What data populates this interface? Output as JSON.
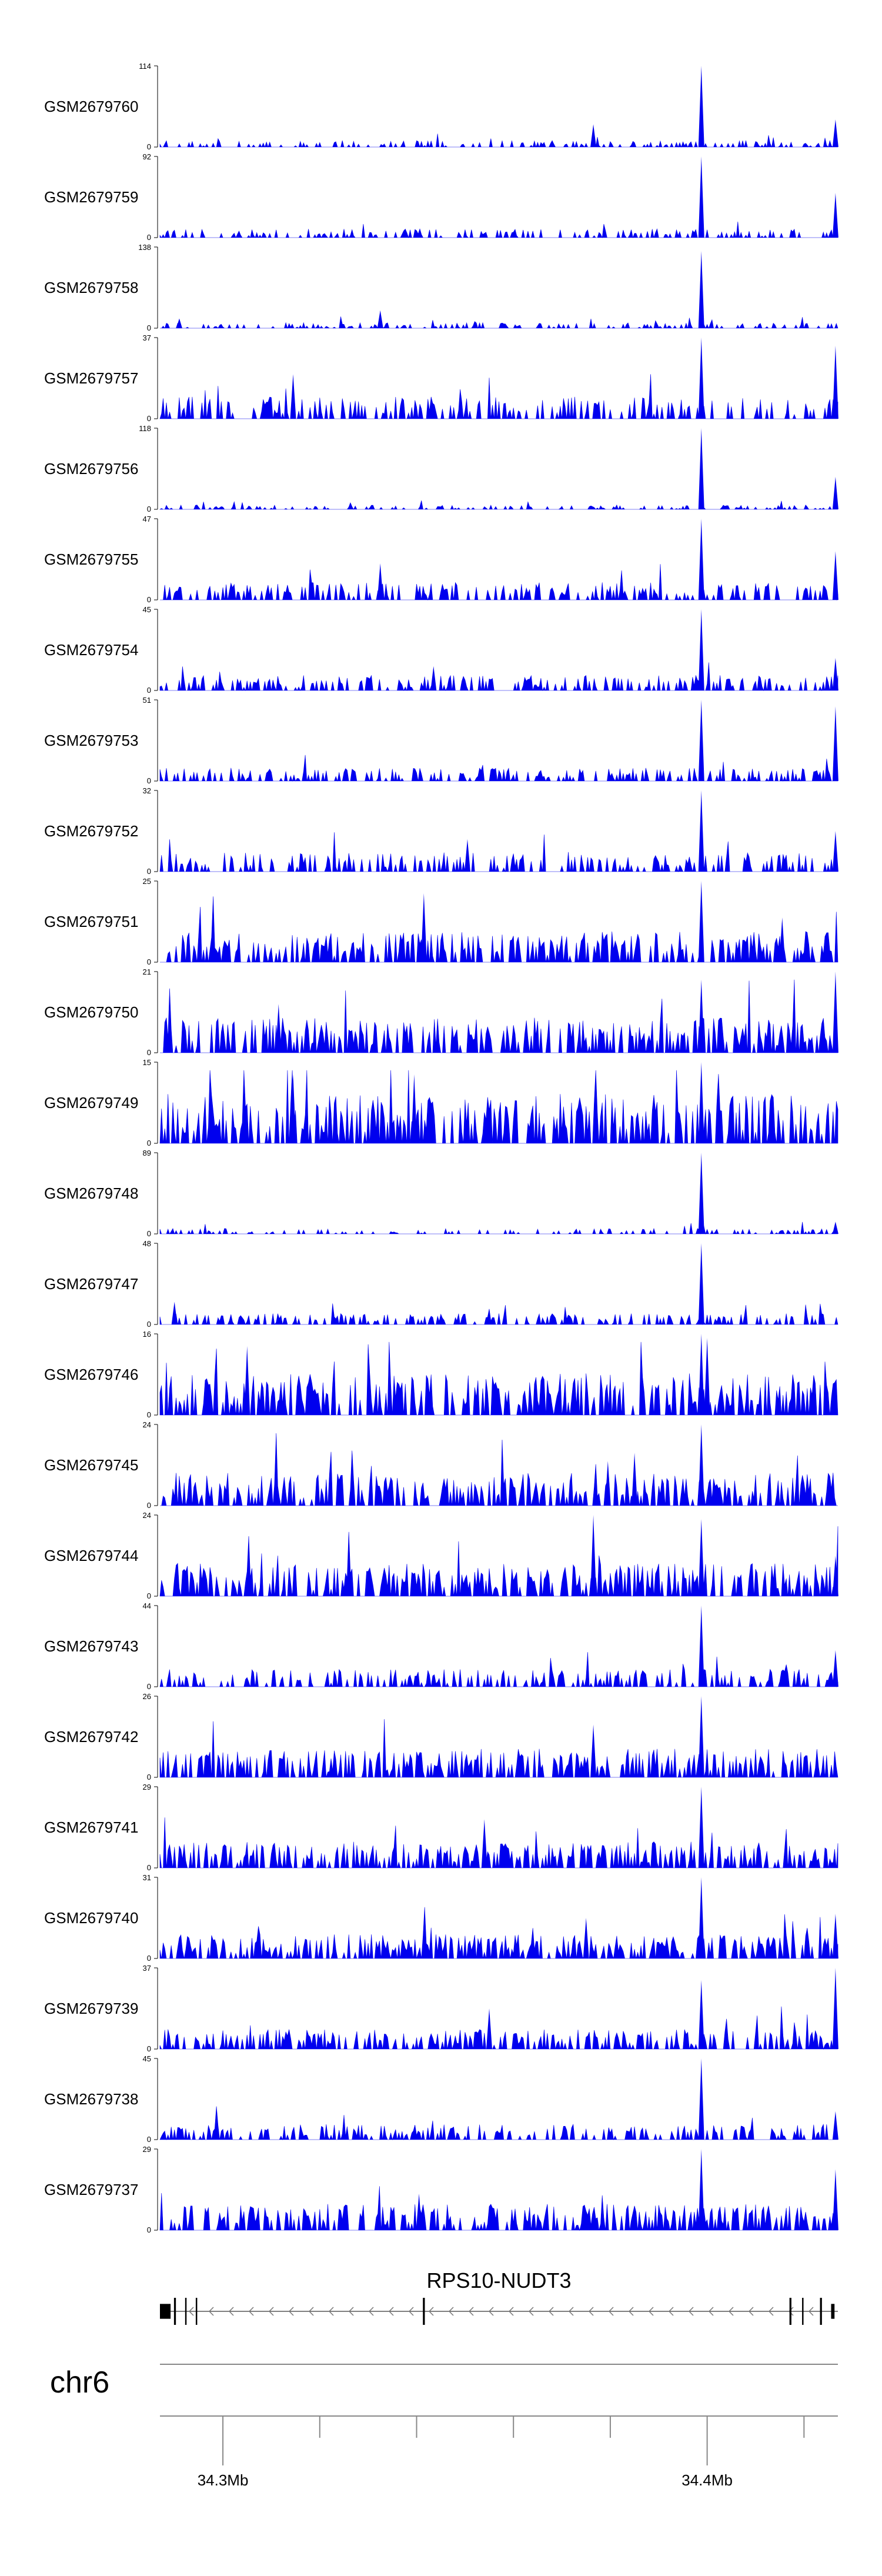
{
  "chart_data": {
    "type": "area",
    "color": "#0000ee",
    "region": {
      "chromosome": "chr6",
      "start": 34288000,
      "end": 34428000
    },
    "tracks": [
      {
        "name": "GSM2679760",
        "ymax": "114",
        "ymin": "0",
        "num_max": 114,
        "seed": 11,
        "density": "low",
        "base_frac": 0.06,
        "peaks": [
          [
            34399800,
            1.0
          ],
          [
            34377500,
            0.28
          ],
          [
            34427500,
            0.34
          ]
        ]
      },
      {
        "name": "GSM2679759",
        "ymax": "92",
        "ymin": "0",
        "num_max": 92,
        "seed": 12,
        "density": "low",
        "base_frac": 0.08,
        "peaks": [
          [
            34399800,
            1.0
          ],
          [
            34427500,
            0.55
          ]
        ]
      },
      {
        "name": "GSM2679758",
        "ymax": "138",
        "ymin": "0",
        "num_max": 138,
        "seed": 13,
        "density": "low",
        "base_frac": 0.05,
        "peaks": [
          [
            34399800,
            0.95
          ],
          [
            34333500,
            0.22
          ],
          [
            34292000,
            0.12
          ]
        ]
      },
      {
        "name": "GSM2679757",
        "ymax": "37",
        "ymin": "0",
        "num_max": 37,
        "seed": 14,
        "density": "mid",
        "base_frac": 0.2,
        "peaks": [
          [
            34399800,
            1.0
          ],
          [
            34427500,
            0.9
          ],
          [
            34315500,
            0.55
          ]
        ]
      },
      {
        "name": "GSM2679756",
        "ymax": "118",
        "ymin": "0",
        "num_max": 118,
        "seed": 15,
        "density": "low",
        "base_frac": 0.04,
        "peaks": [
          [
            34399800,
            1.0
          ],
          [
            34427500,
            0.4
          ]
        ]
      },
      {
        "name": "GSM2679755",
        "ymax": "47",
        "ymin": "0",
        "num_max": 47,
        "seed": 16,
        "density": "mid",
        "base_frac": 0.16,
        "peaks": [
          [
            34399800,
            1.0
          ],
          [
            34427500,
            0.6
          ],
          [
            34333500,
            0.45
          ]
        ]
      },
      {
        "name": "GSM2679754",
        "ymax": "45",
        "ymin": "0",
        "num_max": 45,
        "seed": 17,
        "density": "mid",
        "base_frac": 0.14,
        "peaks": [
          [
            34399800,
            1.0
          ],
          [
            34427500,
            0.4
          ],
          [
            34344500,
            0.3
          ]
        ]
      },
      {
        "name": "GSM2679753",
        "ymax": "51",
        "ymin": "0",
        "num_max": 51,
        "seed": 18,
        "density": "mid",
        "base_frac": 0.12,
        "peaks": [
          [
            34399800,
            1.0
          ],
          [
            34427500,
            0.92
          ]
        ]
      },
      {
        "name": "GSM2679752",
        "ymax": "32",
        "ymin": "0",
        "num_max": 32,
        "seed": 19,
        "density": "mid",
        "base_frac": 0.18,
        "peaks": [
          [
            34399800,
            1.0
          ],
          [
            34427500,
            0.5
          ],
          [
            34351500,
            0.4
          ]
        ]
      },
      {
        "name": "GSM2679751",
        "ymax": "25",
        "ymin": "0",
        "num_max": 25,
        "seed": 20,
        "density": "high",
        "base_frac": 0.28,
        "peaks": [
          [
            34399800,
            1.0
          ],
          [
            34342500,
            0.85
          ],
          [
            34416500,
            0.55
          ]
        ]
      },
      {
        "name": "GSM2679750",
        "ymax": "21",
        "ymin": "0",
        "num_max": 21,
        "seed": 21,
        "density": "high",
        "base_frac": 0.32,
        "peaks": [
          [
            34399800,
            0.9
          ],
          [
            34427500,
            1.0
          ],
          [
            34312500,
            0.6
          ]
        ]
      },
      {
        "name": "GSM2679749",
        "ymax": "15",
        "ymin": "0",
        "num_max": 15,
        "seed": 22,
        "density": "high",
        "base_frac": 0.45,
        "peaks": [
          [
            34399800,
            1.0
          ],
          [
            34315500,
            0.85
          ],
          [
            34340500,
            0.85
          ]
        ]
      },
      {
        "name": "GSM2679748",
        "ymax": "89",
        "ymin": "0",
        "num_max": 89,
        "seed": 23,
        "density": "low",
        "base_frac": 0.05,
        "peaks": [
          [
            34399800,
            1.0
          ],
          [
            34427500,
            0.15
          ]
        ]
      },
      {
        "name": "GSM2679747",
        "ymax": "48",
        "ymin": "0",
        "num_max": 48,
        "seed": 24,
        "density": "mid",
        "base_frac": 0.1,
        "peaks": [
          [
            34399800,
            1.0
          ],
          [
            34291000,
            0.28
          ]
        ]
      },
      {
        "name": "GSM2679746",
        "ymax": "16",
        "ymin": "0",
        "num_max": 16,
        "seed": 25,
        "density": "high",
        "base_frac": 0.38,
        "peaks": [
          [
            34399800,
            1.0
          ],
          [
            34401000,
            0.95
          ],
          [
            34306000,
            0.85
          ]
        ]
      },
      {
        "name": "GSM2679745",
        "ymax": "24",
        "ymin": "0",
        "num_max": 24,
        "seed": 26,
        "density": "high",
        "base_frac": 0.3,
        "peaks": [
          [
            34399800,
            1.0
          ],
          [
            34380500,
            0.55
          ],
          [
            34386000,
            0.65
          ]
        ]
      },
      {
        "name": "GSM2679744",
        "ymax": "24",
        "ymin": "0",
        "num_max": 24,
        "seed": 27,
        "density": "high",
        "base_frac": 0.3,
        "peaks": [
          [
            34377500,
            1.0
          ],
          [
            34399800,
            0.95
          ],
          [
            34427500,
            0.5
          ]
        ]
      },
      {
        "name": "GSM2679743",
        "ymax": "44",
        "ymin": "0",
        "num_max": 44,
        "seed": 28,
        "density": "mid",
        "base_frac": 0.16,
        "peaks": [
          [
            34399800,
            1.0
          ],
          [
            34427500,
            0.45
          ]
        ]
      },
      {
        "name": "GSM2679742",
        "ymax": "26",
        "ymin": "0",
        "num_max": 26,
        "seed": 29,
        "density": "high",
        "base_frac": 0.26,
        "peaks": [
          [
            34399800,
            1.0
          ],
          [
            34377500,
            0.65
          ]
        ]
      },
      {
        "name": "GSM2679741",
        "ymax": "29",
        "ymin": "0",
        "num_max": 29,
        "seed": 30,
        "density": "high",
        "base_frac": 0.24,
        "peaks": [
          [
            34399800,
            1.0
          ],
          [
            34355000,
            0.6
          ]
        ]
      },
      {
        "name": "GSM2679740",
        "ymax": "31",
        "ymin": "0",
        "num_max": 31,
        "seed": 31,
        "density": "high",
        "base_frac": 0.22,
        "peaks": [
          [
            34399800,
            1.0
          ],
          [
            34427500,
            0.55
          ],
          [
            34376000,
            0.5
          ]
        ]
      },
      {
        "name": "GSM2679739",
        "ymax": "37",
        "ymin": "0",
        "num_max": 37,
        "seed": 32,
        "density": "high",
        "base_frac": 0.18,
        "peaks": [
          [
            34427500,
            1.0
          ],
          [
            34399800,
            0.85
          ],
          [
            34356000,
            0.5
          ]
        ]
      },
      {
        "name": "GSM2679738",
        "ymax": "45",
        "ymin": "0",
        "num_max": 45,
        "seed": 33,
        "density": "mid",
        "base_frac": 0.14,
        "peaks": [
          [
            34399800,
            1.0
          ],
          [
            34427500,
            0.35
          ]
        ]
      },
      {
        "name": "GSM2679737",
        "ymax": "29",
        "ymin": "0",
        "num_max": 29,
        "seed": 34,
        "density": "high",
        "base_frac": 0.24,
        "peaks": [
          [
            34399800,
            1.0
          ],
          [
            34427500,
            0.75
          ],
          [
            34341500,
            0.45
          ]
        ]
      }
    ],
    "gene": {
      "name": "RPS10-NUDT3",
      "strand": "-",
      "start": 34288000,
      "end": 34428000,
      "exons": [
        [
          34288000,
          34290200
        ],
        [
          34290900,
          34291300
        ],
        [
          34293200,
          34293500
        ],
        [
          34295400,
          34295700
        ],
        [
          34342300,
          34342700
        ],
        [
          34418000,
          34418400
        ],
        [
          34420600,
          34420900
        ],
        [
          34424300,
          34424700
        ],
        [
          34426600,
          34427300
        ]
      ]
    },
    "axis": {
      "ticks": [
        34301000,
        34321000,
        34341000,
        34361000,
        34381000,
        34401000,
        34421000
      ],
      "tick_labels": [
        {
          "pos": 34301000,
          "label": "34.3Mb"
        },
        {
          "pos": 34401000,
          "label": "34.4Mb"
        }
      ]
    }
  }
}
